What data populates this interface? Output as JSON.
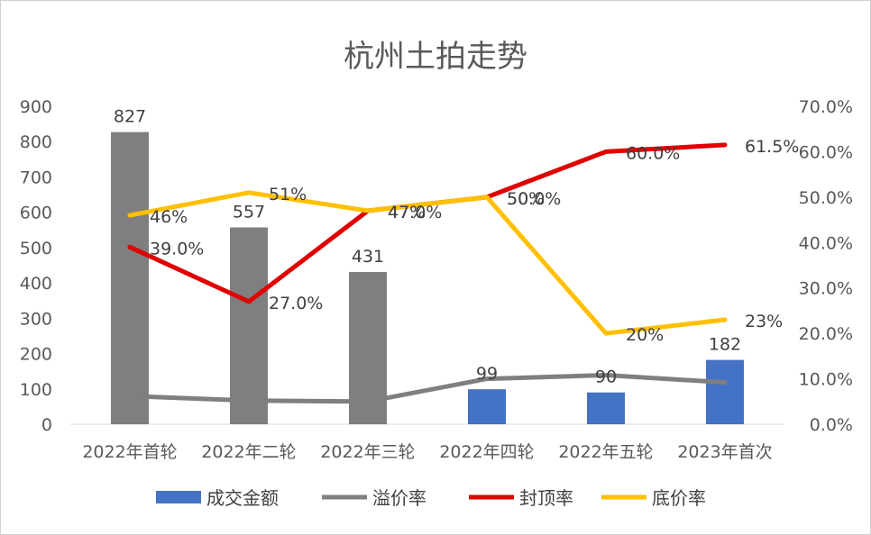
{
  "chart_data": {
    "type": "bar",
    "title": "杭州土拍走势",
    "categories": [
      "2022年首轮",
      "2022年二轮",
      "2022年三轮",
      "2022年四轮",
      "2022年五轮",
      "2023年首次"
    ],
    "y_left": {
      "ticks": [
        "0",
        "100",
        "200",
        "300",
        "400",
        "500",
        "600",
        "700",
        "800",
        "900"
      ],
      "ylim": [
        0,
        900
      ]
    },
    "y_right": {
      "ticks": [
        "0.0%",
        "10.0%",
        "20.0%",
        "30.0%",
        "40.0%",
        "50.0%",
        "60.0%",
        "70.0%"
      ],
      "ylim": [
        0,
        70
      ]
    },
    "bars": {
      "name": "成交金额",
      "values": [
        827,
        557,
        431,
        99,
        90,
        182
      ],
      "labels": [
        "827",
        "557",
        "431",
        "99",
        "90",
        "182"
      ],
      "colors": [
        "#7f7f7f",
        "#7f7f7f",
        "#7f7f7f",
        "#4472c4",
        "#4472c4",
        "#4472c4"
      ]
    },
    "lines": [
      {
        "name": "溢价率",
        "color": "#7f7f7f",
        "axis": "right",
        "values": [
          6.2,
          5.2,
          5.0,
          10.0,
          10.8,
          9.2
        ]
      },
      {
        "name": "封顶率",
        "color": "#e00000",
        "axis": "right",
        "values": [
          39.0,
          27.0,
          47.0,
          50.0,
          60.0,
          61.5
        ],
        "labels": [
          "39.0%",
          "27.0%",
          "47.0%",
          "50.0%",
          "60.0%",
          "61.5%"
        ]
      },
      {
        "name": "底价率",
        "color": "#ffc000",
        "axis": "right",
        "values": [
          46,
          51,
          47,
          50,
          20,
          23
        ],
        "labels": [
          "46%",
          "51%",
          "47%",
          "50%",
          "20%",
          "23%"
        ]
      }
    ],
    "legend": {
      "position": "bottom",
      "items": [
        "成交金额",
        "溢价率",
        "封顶率",
        "底价率"
      ],
      "colors": [
        "#4472c4",
        "#7f7f7f",
        "#e00000",
        "#ffc000"
      ]
    },
    "grid": false
  }
}
